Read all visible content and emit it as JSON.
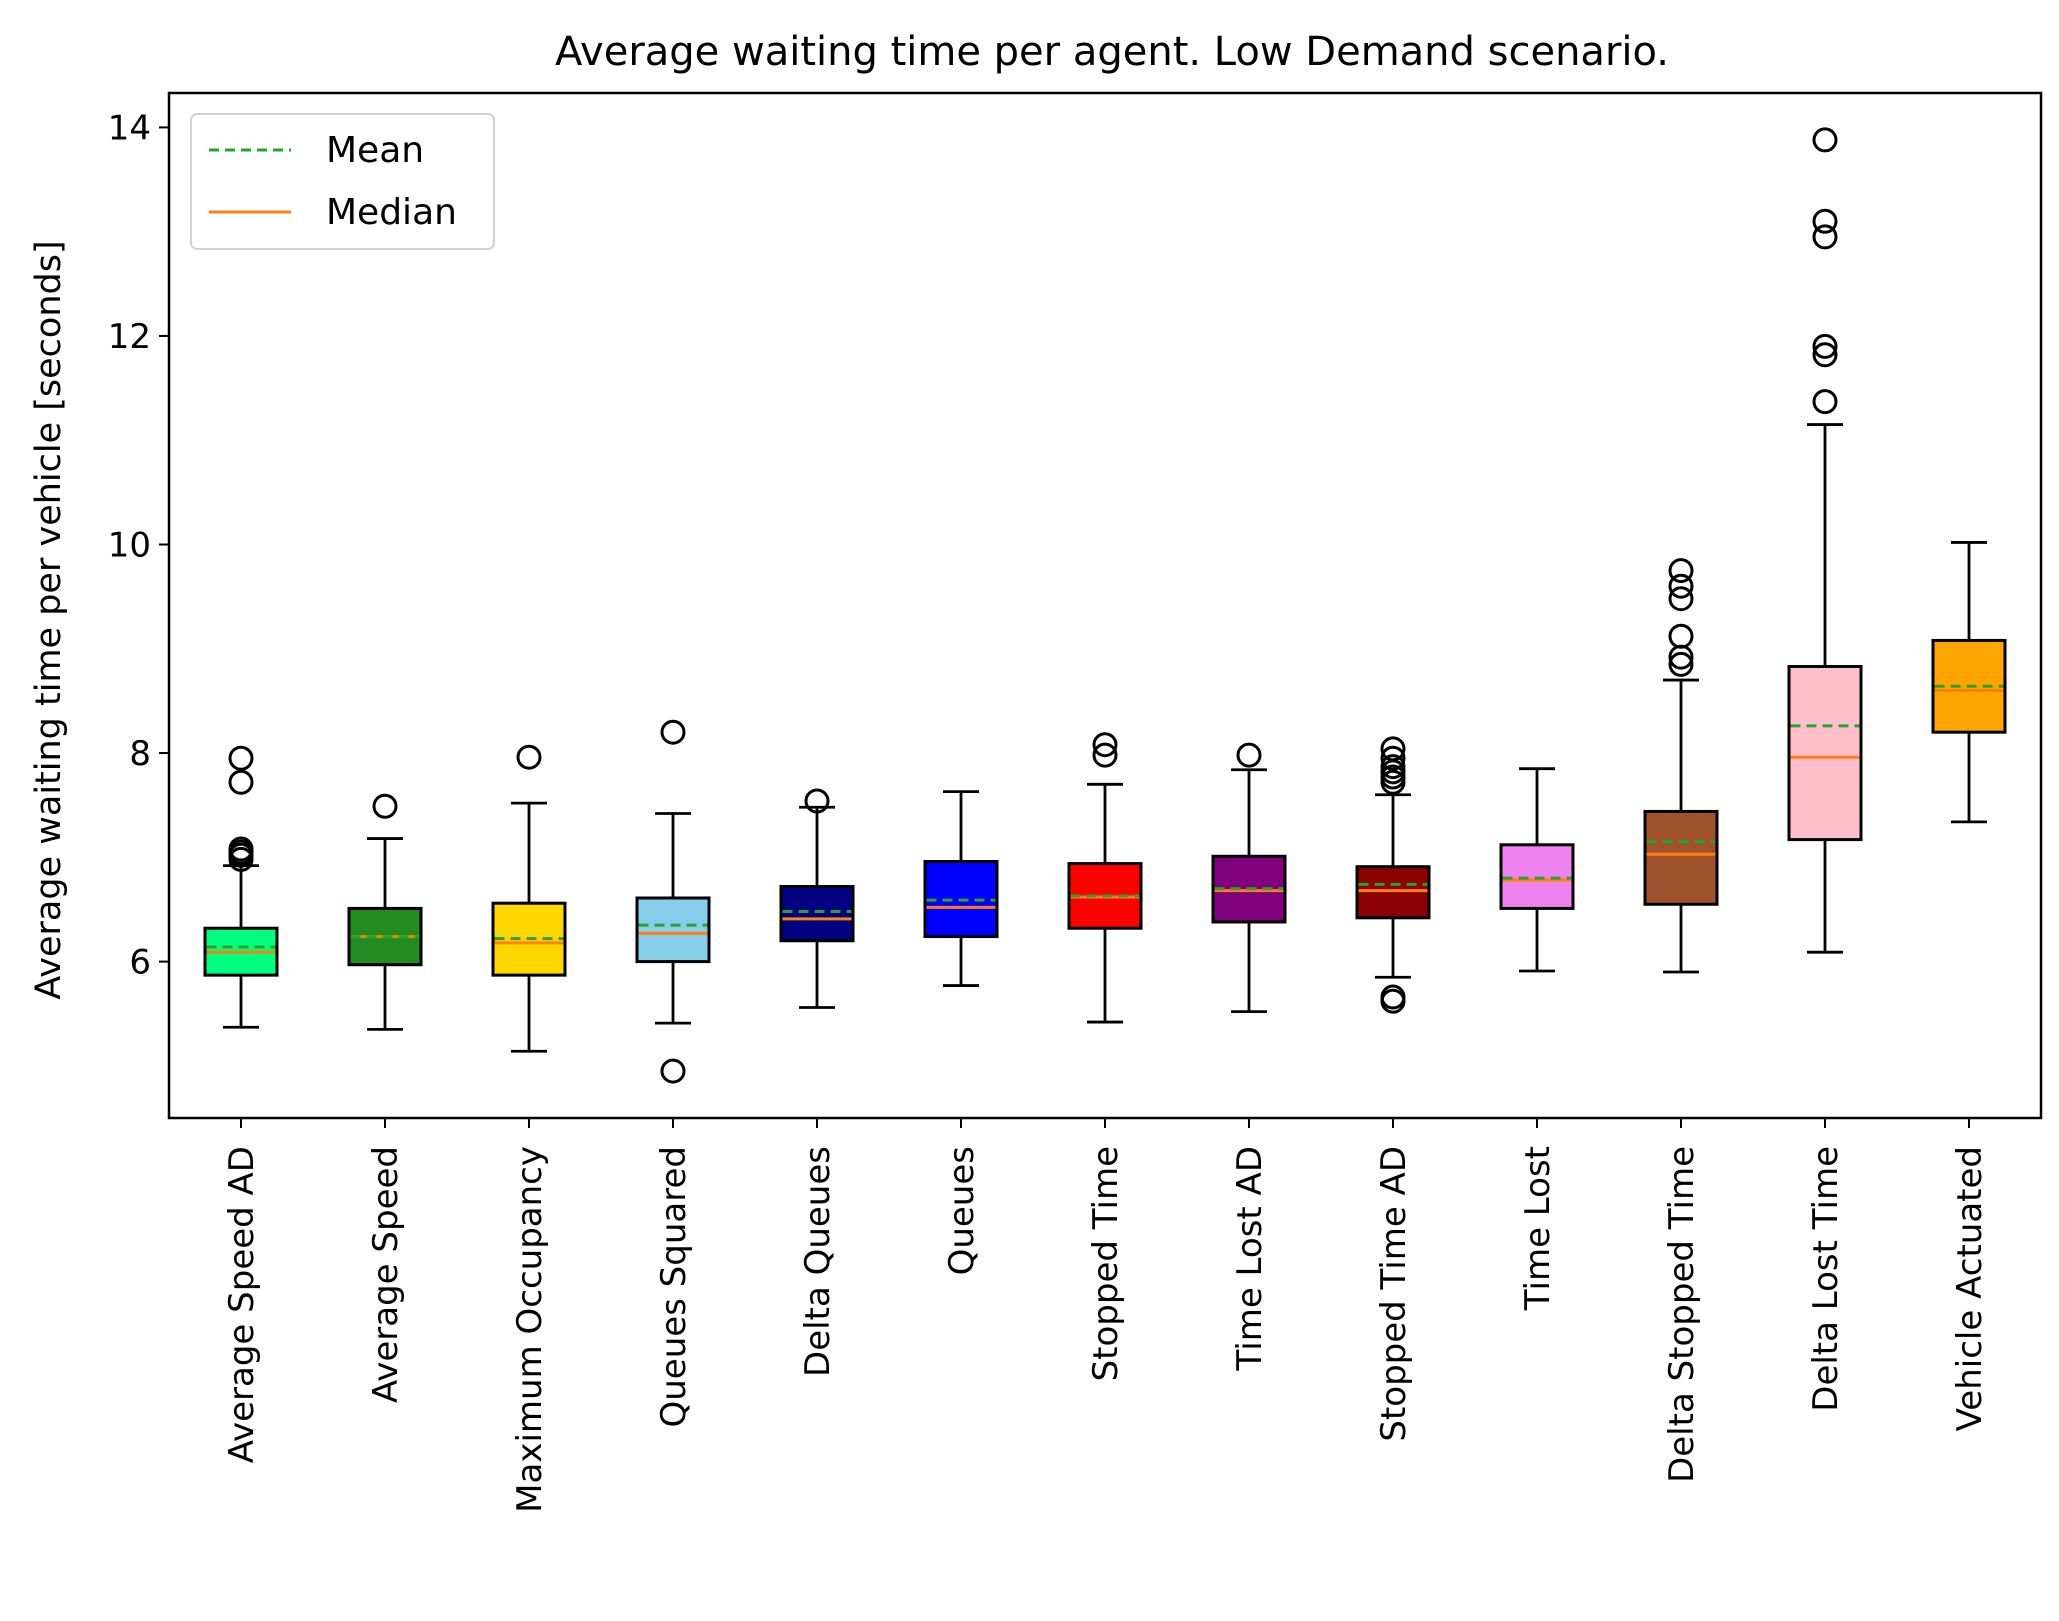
{
  "chart_data": {
    "type": "box",
    "title": "Average waiting time per agent. Low Demand scenario.",
    "xlabel": "",
    "ylabel": "Average waiting time per vehicle [seconds]",
    "ylim": [
      4.5,
      14.33
    ],
    "yticks": [
      6,
      8,
      10,
      12,
      14
    ],
    "grid": false,
    "legend": {
      "position": "top-left",
      "entries": [
        {
          "label": "Mean",
          "color": "#2ca02c",
          "style": "dashed"
        },
        {
          "label": "Median",
          "color": "#ff7f0e",
          "style": "solid"
        }
      ]
    },
    "categories": [
      "Average Speed AD",
      "Average Speed",
      "Maximum Occupancy",
      "Queues Squared",
      "Delta Queues",
      "Queues",
      "Stopped Time",
      "Time Lost AD",
      "Stopped Time AD",
      "Time Lost",
      "Delta Stopped Time",
      "Delta Lost Time",
      "Vehicle Actuated"
    ],
    "series": [
      {
        "category": "Average Speed AD",
        "color": "#00ff7f",
        "whisker_low": 5.37,
        "q1": 5.87,
        "median": 6.09,
        "mean": 6.14,
        "q3": 6.32,
        "whisker_high": 6.92,
        "outliers": [
          6.98,
          7.02,
          7.05,
          7.08,
          7.72,
          7.95
        ]
      },
      {
        "category": "Average Speed",
        "color": "#228b22",
        "whisker_low": 5.35,
        "q1": 5.97,
        "median": 6.24,
        "mean": 6.24,
        "q3": 6.51,
        "whisker_high": 7.18,
        "outliers": [
          7.49
        ]
      },
      {
        "category": "Maximum Occupancy",
        "color": "#ffd700",
        "whisker_low": 5.14,
        "q1": 5.87,
        "median": 6.18,
        "mean": 6.22,
        "q3": 6.56,
        "whisker_high": 7.52,
        "outliers": [
          7.96
        ]
      },
      {
        "category": "Queues Squared",
        "color": "#87ceeb",
        "whisker_low": 5.41,
        "q1": 6.0,
        "median": 6.27,
        "mean": 6.35,
        "q3": 6.61,
        "whisker_high": 7.42,
        "outliers": [
          4.95,
          8.2
        ]
      },
      {
        "category": "Delta Queues",
        "color": "#000080",
        "whisker_low": 5.56,
        "q1": 6.2,
        "median": 6.41,
        "mean": 6.48,
        "q3": 6.72,
        "whisker_high": 7.48,
        "outliers": [
          7.54
        ]
      },
      {
        "category": "Queues",
        "color": "#0000ff",
        "whisker_low": 5.77,
        "q1": 6.24,
        "median": 6.52,
        "mean": 6.59,
        "q3": 6.96,
        "whisker_high": 7.63,
        "outliers": []
      },
      {
        "category": "Stopped Time",
        "color": "#ff0000",
        "whisker_low": 5.42,
        "q1": 6.32,
        "median": 6.62,
        "mean": 6.63,
        "q3": 6.94,
        "whisker_high": 7.7,
        "outliers": [
          7.98,
          8.08
        ]
      },
      {
        "category": "Time Lost AD",
        "color": "#800080",
        "whisker_low": 5.52,
        "q1": 6.38,
        "median": 6.68,
        "mean": 6.7,
        "q3": 7.01,
        "whisker_high": 7.84,
        "outliers": [
          7.98
        ]
      },
      {
        "category": "Stopped Time AD",
        "color": "#8b0000",
        "whisker_low": 5.85,
        "q1": 6.42,
        "median": 6.68,
        "mean": 6.74,
        "q3": 6.91,
        "whisker_high": 7.6,
        "outliers": [
          5.62,
          5.66,
          7.72,
          7.77,
          7.82,
          7.87,
          7.95,
          8.04
        ]
      },
      {
        "category": "Time Lost",
        "color": "#ee82ee",
        "whisker_low": 5.91,
        "q1": 6.51,
        "median": 6.78,
        "mean": 6.8,
        "q3": 7.12,
        "whisker_high": 7.85,
        "outliers": []
      },
      {
        "category": "Delta Stopped Time",
        "color": "#a0522d",
        "whisker_low": 5.9,
        "q1": 6.55,
        "median": 7.03,
        "mean": 7.15,
        "q3": 7.44,
        "whisker_high": 8.7,
        "outliers": [
          8.85,
          8.92,
          9.12,
          9.48,
          9.6,
          9.75
        ]
      },
      {
        "category": "Delta Lost Time",
        "color": "#ffc0cb",
        "whisker_low": 6.09,
        "q1": 7.17,
        "median": 7.96,
        "mean": 8.26,
        "q3": 8.83,
        "whisker_high": 11.15,
        "outliers": [
          11.37,
          11.82,
          11.9,
          12.95,
          13.1,
          13.88
        ]
      },
      {
        "category": "Vehicle Actuated",
        "color": "#ffa500",
        "whisker_low": 7.34,
        "q1": 8.2,
        "median": 8.6,
        "mean": 8.64,
        "q3": 9.08,
        "whisker_high": 10.02,
        "outliers": []
      }
    ]
  }
}
